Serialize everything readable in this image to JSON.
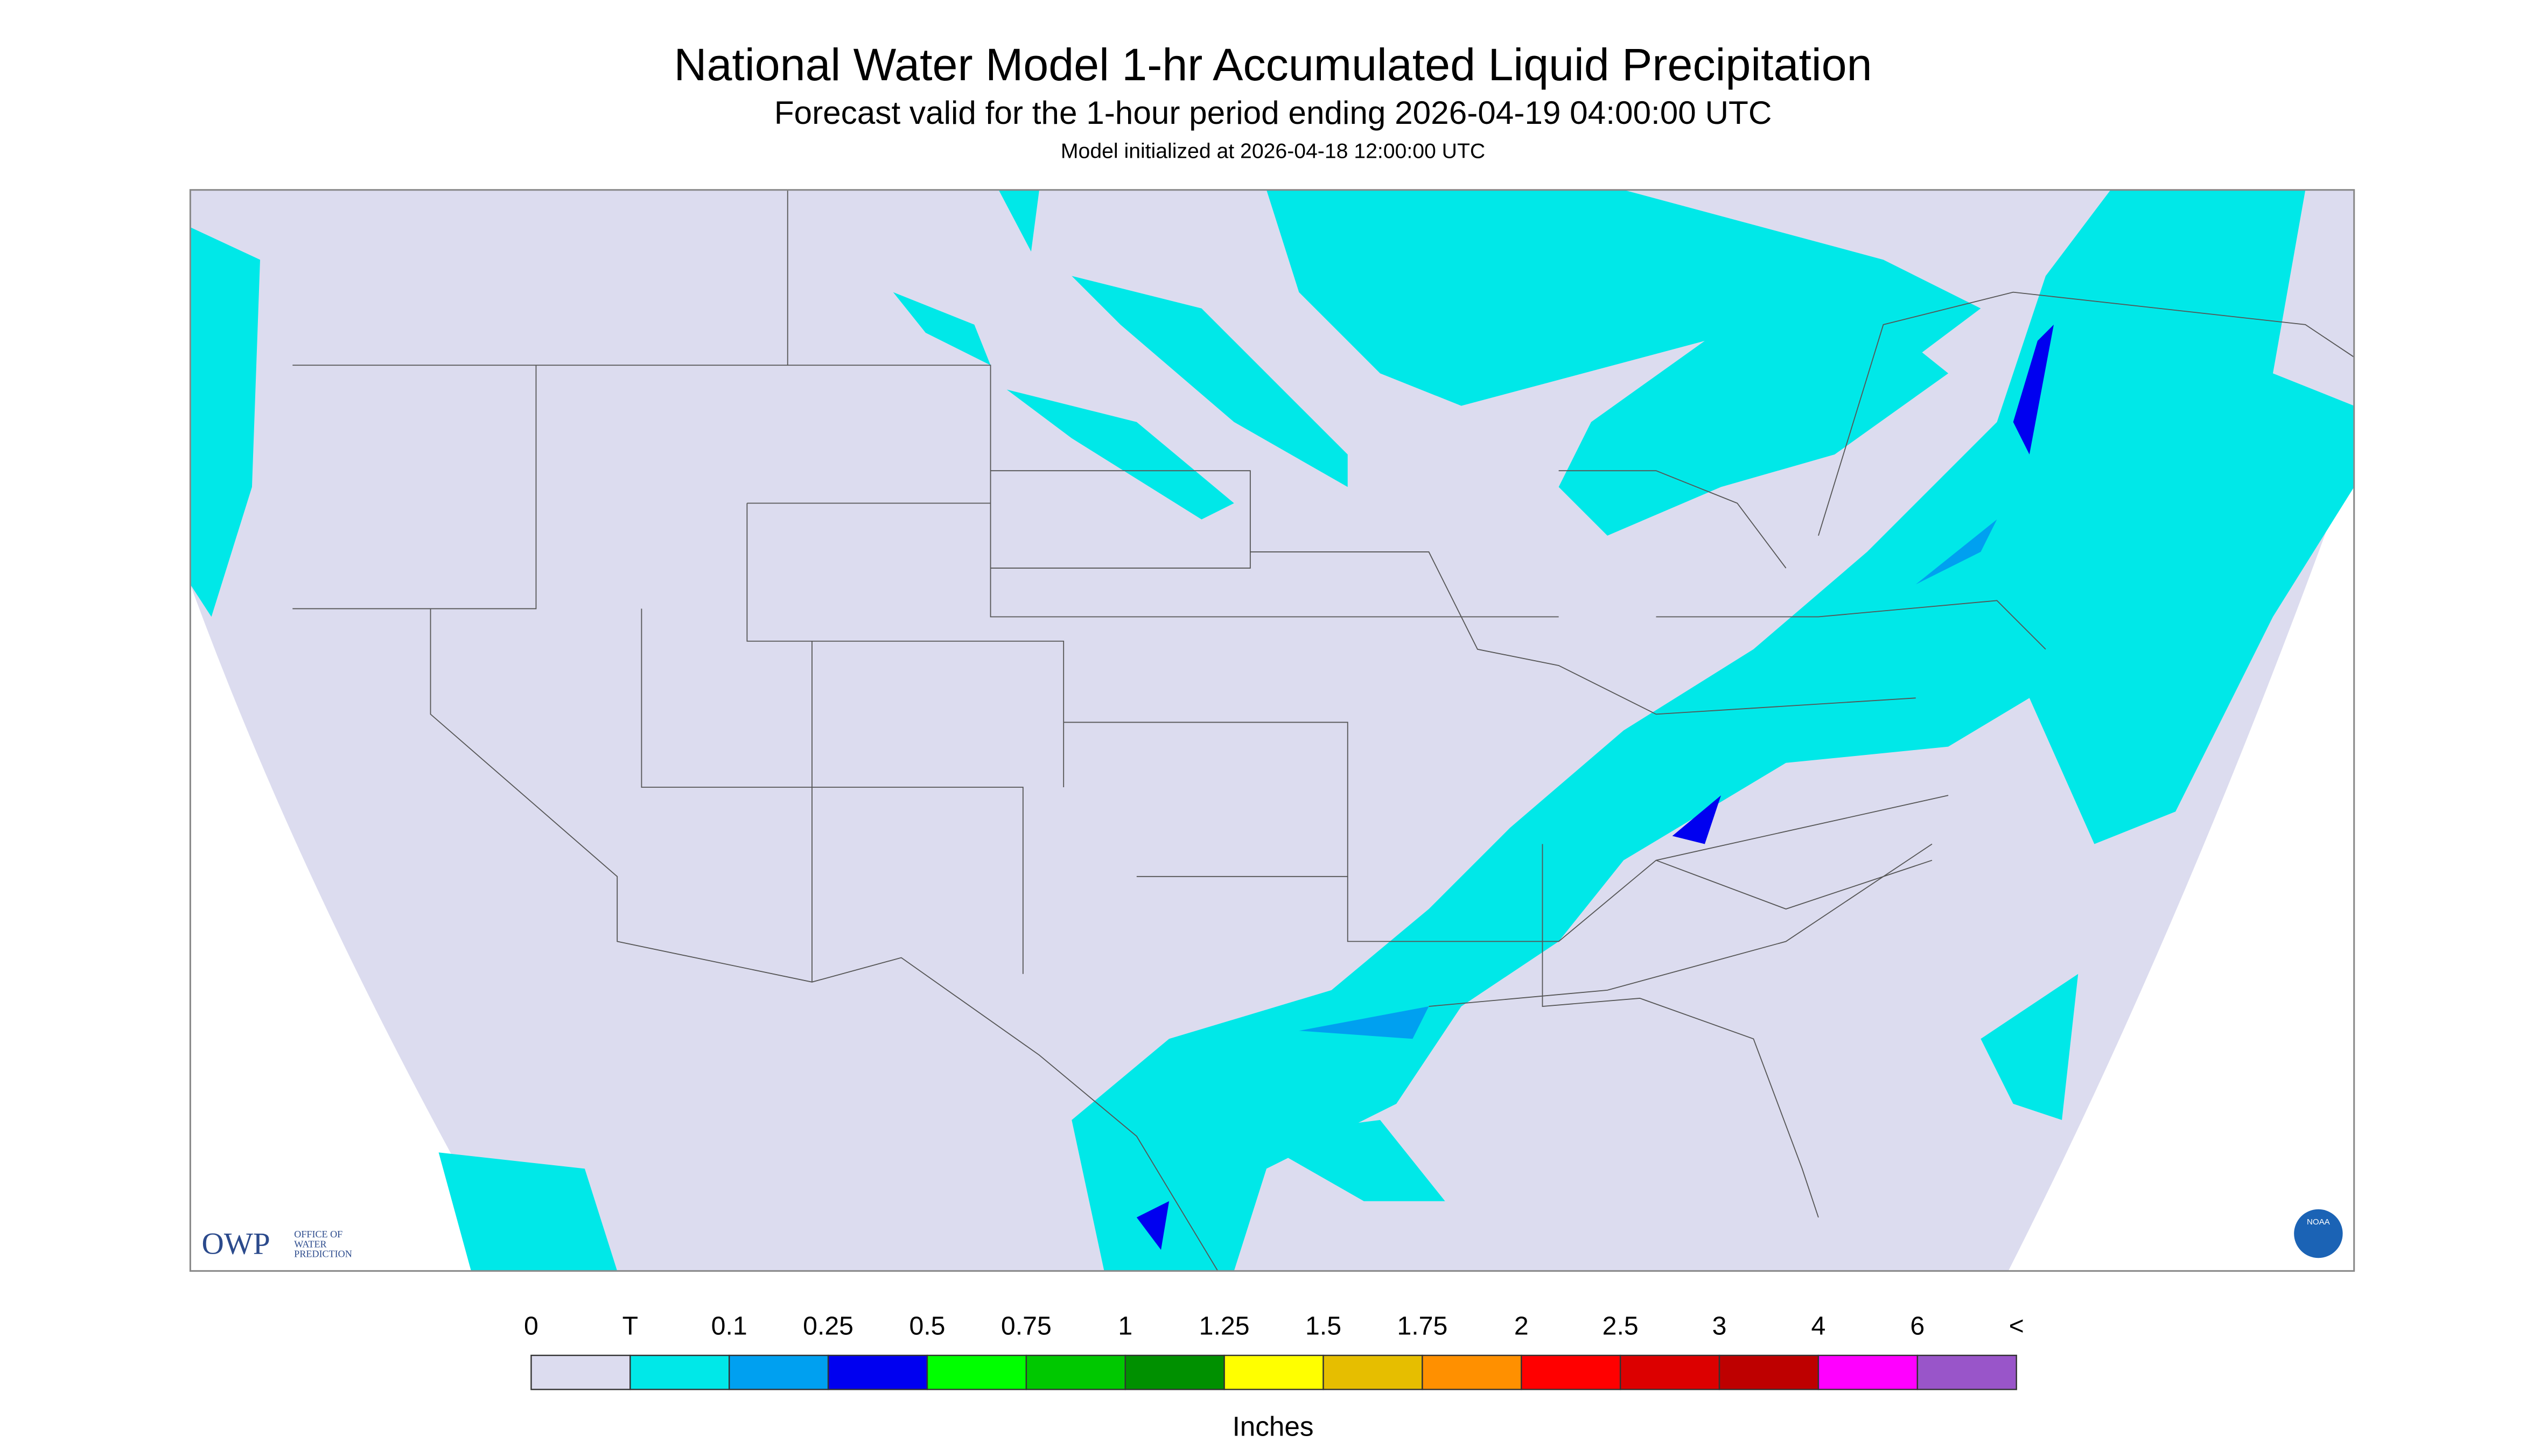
{
  "header": {
    "title": "National Water Model 1-hr Accumulated Liquid Precipitation",
    "subtitle": "Forecast valid for the 1-hour period ending 2026-04-19 04:00:00 UTC",
    "initialized": "Model initialized at 2026-04-18 12:00:00 UTC"
  },
  "legend": {
    "labels": [
      "0",
      "T",
      "0.1",
      "0.25",
      "0.5",
      "0.75",
      "1",
      "1.25",
      "1.5",
      "1.75",
      "2",
      "2.5",
      "3",
      "4",
      "6",
      "<"
    ],
    "colors": [
      "#dcdcef",
      "#00e8e8",
      "#00a0f0",
      "#0000f0",
      "#00ff00",
      "#00c800",
      "#009000",
      "#ffff00",
      "#e6be00",
      "#ff9000",
      "#ff0000",
      "#dc0000",
      "#be0000",
      "#ff00ff",
      "#9955c9"
    ],
    "unit": "Inches"
  },
  "logos": {
    "owp": "OWP",
    "owp_lines": [
      "OFFICE OF",
      "WATER",
      "PREDICTION"
    ],
    "noaa": "NOAA"
  }
}
